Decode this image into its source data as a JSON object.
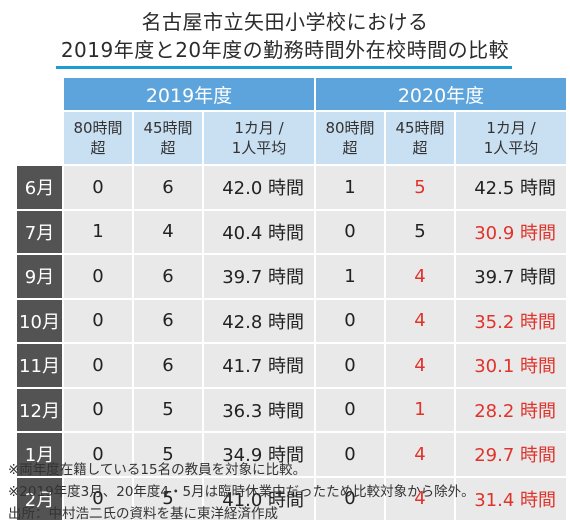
{
  "title": {
    "line1": "名古屋市立矢田小学校における",
    "line2": "2019年度と20年度の勤務時間外在校時間の比較"
  },
  "years": [
    "2019年度",
    "2020年度"
  ],
  "columns": [
    "80時間\n超",
    "45時間\n超",
    "1カ月 /\n1人平均"
  ],
  "rows": [
    {
      "month": "6月",
      "y2019": {
        "over80": "0",
        "over45": "6",
        "avg": "42.0 時間"
      },
      "y2020": {
        "over80": "1",
        "over45": "5",
        "avg": "42.5 時間"
      }
    },
    {
      "month": "7月",
      "y2019": {
        "over80": "1",
        "over45": "4",
        "avg": "40.4 時間"
      },
      "y2020": {
        "over80": "0",
        "over45": "5",
        "avg": "30.9 時間"
      }
    },
    {
      "month": "9月",
      "y2019": {
        "over80": "0",
        "over45": "6",
        "avg": "39.7 時間"
      },
      "y2020": {
        "over80": "1",
        "over45": "4",
        "avg": "39.7 時間"
      }
    },
    {
      "month": "10月",
      "y2019": {
        "over80": "0",
        "over45": "6",
        "avg": "42.8 時間"
      },
      "y2020": {
        "over80": "0",
        "over45": "4",
        "avg": "35.2 時間"
      }
    },
    {
      "month": "11月",
      "y2019": {
        "over80": "0",
        "over45": "6",
        "avg": "41.7 時間"
      },
      "y2020": {
        "over80": "0",
        "over45": "4",
        "avg": "30.1 時間"
      }
    },
    {
      "month": "12月",
      "y2019": {
        "over80": "0",
        "over45": "5",
        "avg": "36.3 時間"
      },
      "y2020": {
        "over80": "0",
        "over45": "1",
        "avg": "28.2 時間"
      }
    },
    {
      "month": "1月",
      "y2019": {
        "over80": "0",
        "over45": "5",
        "avg": "34.9 時間"
      },
      "y2020": {
        "over80": "0",
        "over45": "4",
        "avg": "29.7 時間"
      }
    },
    {
      "month": "2月",
      "y2019": {
        "over80": "0",
        "over45": "5",
        "avg": "41.0 時間"
      },
      "y2020": {
        "over80": "0",
        "over45": "4",
        "avg": "31.4 時間"
      }
    }
  ],
  "notes": [
    "※両年度在籍している15名の教員を対象に比較。",
    "※2019年度3月、20年度4・5月は臨時休業中だったため比較対象から除外。",
    "出所：中村浩二氏の資料を基に東洋経済作成"
  ],
  "colors": {
    "year_header": "#5da4dc",
    "sub_header": "#c9dff2",
    "month_cell": "#535353",
    "data_cell": "#e9e9e9",
    "highlight_red": "#e0332b",
    "title_underline": "#1c9dd6"
  }
}
